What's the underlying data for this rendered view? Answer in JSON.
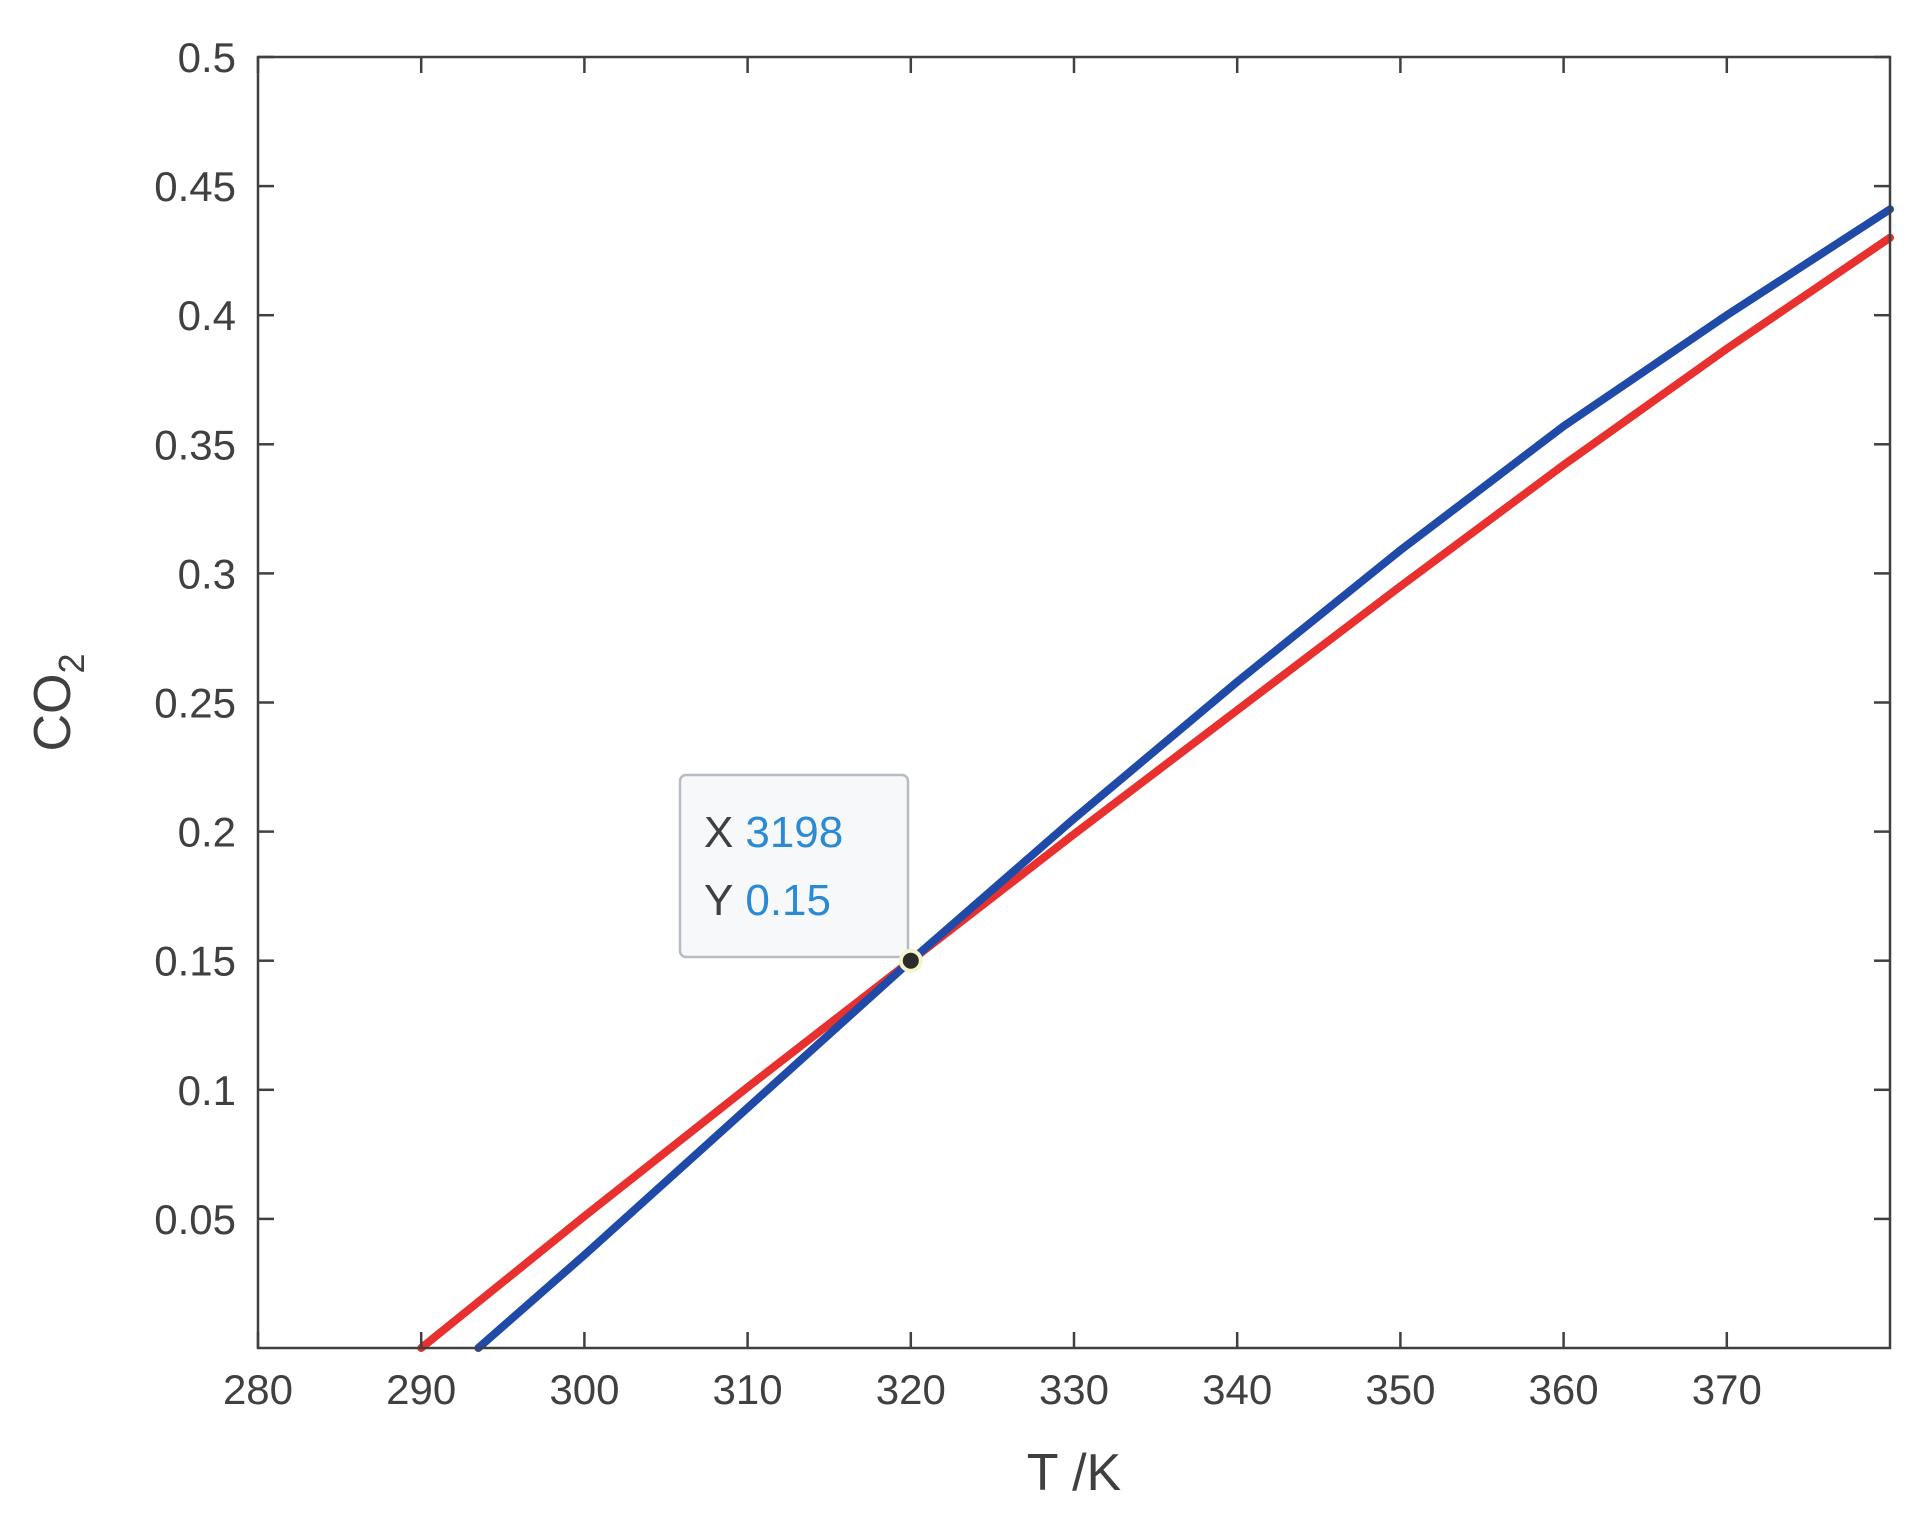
{
  "chart_data": {
    "type": "line",
    "xlabel": "T /K",
    "ylabel": "CO",
    "ylabel_subscript": "2",
    "xlim": [
      280,
      380
    ],
    "ylim": [
      0,
      0.5
    ],
    "x_ticks": [
      "280",
      "290",
      "300",
      "310",
      "320",
      "330",
      "340",
      "350",
      "360",
      "370"
    ],
    "y_ticks": [
      "0.05",
      "0.1",
      "0.15",
      "0.2",
      "0.25",
      "0.3",
      "0.35",
      "0.4",
      "0.45",
      "0.5"
    ],
    "grid": false,
    "series": [
      {
        "color": "#e8302e",
        "x": [
          290,
          300,
          310,
          320,
          330,
          340,
          350,
          360,
          370,
          380
        ],
        "y": [
          0.0,
          0.051,
          0.101,
          0.15,
          0.199,
          0.247,
          0.295,
          0.342,
          0.387,
          0.43
        ]
      },
      {
        "color": "#1f4aa8",
        "x": [
          293.5,
          300,
          310,
          320,
          330,
          340,
          350,
          360,
          370,
          380
        ],
        "y": [
          0.0,
          0.036,
          0.093,
          0.15,
          0.205,
          0.258,
          0.309,
          0.357,
          0.4,
          0.441
        ]
      }
    ],
    "datatip": {
      "x_label": "X",
      "x_value": "3198",
      "y_label": "Y",
      "y_value": "0.15",
      "point_x": 320,
      "point_y": 0.15,
      "value_color": "#2a8ad4"
    }
  }
}
